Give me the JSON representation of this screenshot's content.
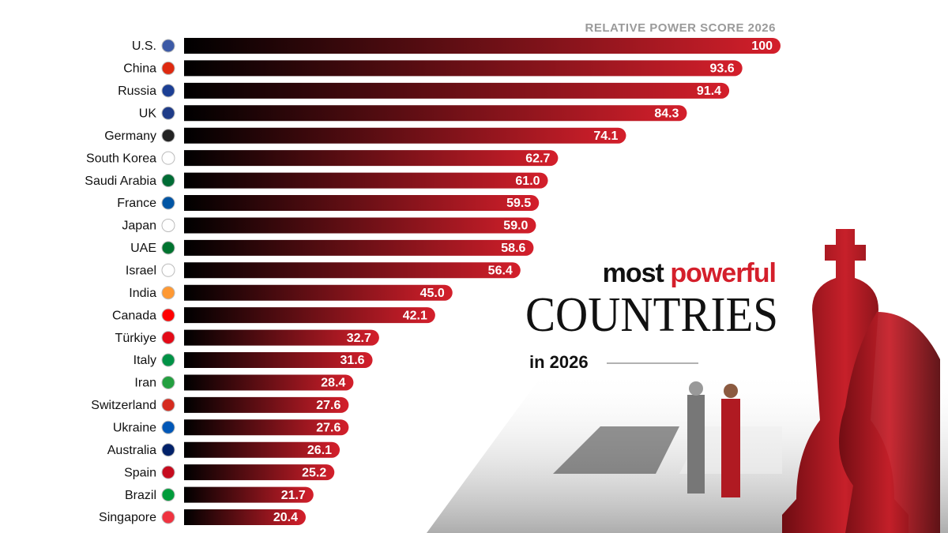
{
  "chart_data": {
    "type": "bar",
    "orientation": "horizontal",
    "subtitle": "RELATIVE POWER SCORE 2026",
    "title_parts": [
      "most",
      "powerful",
      "COUNTRIES",
      "in 2026"
    ],
    "categories": [
      "U.S.",
      "China",
      "Russia",
      "UK",
      "Germany",
      "South Korea",
      "Saudi Arabia",
      "France",
      "Japan",
      "UAE",
      "Israel",
      "India",
      "Canada",
      "Türkiye",
      "Italy",
      "Iran",
      "Switzerland",
      "Ukraine",
      "Australia",
      "Spain",
      "Brazil",
      "Singapore"
    ],
    "values": [
      100,
      93.6,
      91.4,
      84.3,
      74.1,
      62.7,
      61.0,
      59.5,
      59.0,
      58.6,
      56.4,
      45.0,
      42.1,
      32.7,
      31.6,
      28.4,
      27.6,
      27.6,
      26.1,
      25.2,
      21.7,
      20.4
    ],
    "value_labels": [
      "100",
      "93.6",
      "91.4",
      "84.3",
      "74.1",
      "62.7",
      "61.0",
      "59.5",
      "59.0",
      "58.6",
      "56.4",
      "45.0",
      "42.1",
      "32.7",
      "31.6",
      "28.4",
      "27.6",
      "27.6",
      "26.1",
      "25.2",
      "21.7",
      "20.4"
    ],
    "xlim": [
      0,
      100
    ],
    "color": "#d41f2b"
  }
}
